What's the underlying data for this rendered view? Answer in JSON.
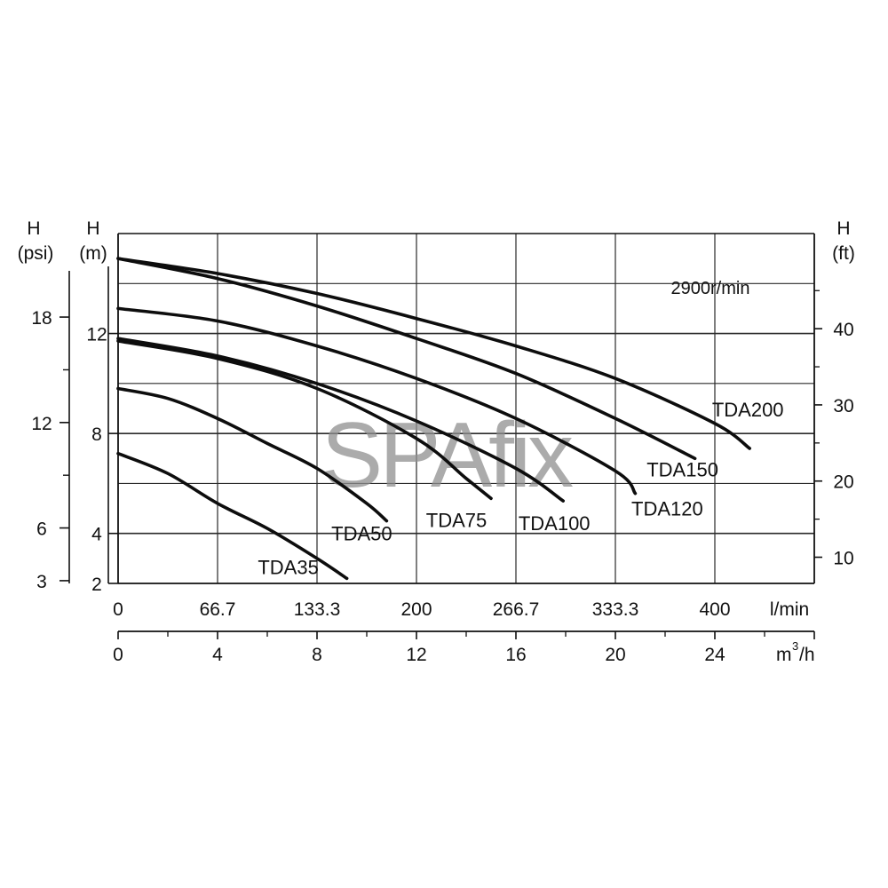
{
  "chart_data": {
    "type": "line",
    "annotation": "2900r/min",
    "watermark": "SPAfix",
    "x_unit_primary": "l/min",
    "x_unit_secondary_base": "m",
    "x_unit_secondary_exp": "3",
    "x_unit_secondary_tail": "/h",
    "x_ticks_lmin": [
      "0",
      "66.7",
      "133.3",
      "200",
      "266.7",
      "333.3",
      "400"
    ],
    "x_ticks_m3h": [
      "0",
      "4",
      "8",
      "12",
      "16",
      "20",
      "24"
    ],
    "xlim_m3h": [
      0,
      28
    ],
    "y_unit_m_top": "H",
    "y_unit_m_bottom": "(m)",
    "y_unit_psi_top": "H",
    "y_unit_psi_bottom": "(psi)",
    "y_unit_ft_top": "H",
    "y_unit_ft_bottom": "(ft)",
    "ylim_m": [
      2,
      16
    ],
    "y_ticks_m": [
      {
        "value": 2,
        "label": "2"
      },
      {
        "value": 4,
        "label": "4"
      },
      {
        "value": 8,
        "label": "8"
      },
      {
        "value": 12,
        "label": "12"
      }
    ],
    "y_ticks_psi": [
      {
        "value": 3,
        "label": "3"
      },
      {
        "value": 6,
        "label": "6"
      },
      {
        "value": 12,
        "label": "12"
      },
      {
        "value": 18,
        "label": "18"
      }
    ],
    "y_ticks_ft": [
      {
        "value": 10,
        "label": "10"
      },
      {
        "value": 20,
        "label": "20"
      },
      {
        "value": 30,
        "label": "30"
      },
      {
        "value": 40,
        "label": "40"
      }
    ],
    "grid": true,
    "series": [
      {
        "name": "TDA35",
        "x": [
          0,
          2,
          4,
          6,
          8,
          9.2
        ],
        "y": [
          7.2,
          6.4,
          5.2,
          4.2,
          3.0,
          2.2
        ]
      },
      {
        "name": "TDA50",
        "x": [
          0,
          2,
          4,
          6,
          8,
          10,
          10.8
        ],
        "y": [
          9.8,
          9.4,
          8.6,
          7.6,
          6.6,
          5.2,
          4.5
        ]
      },
      {
        "name": "TDA75",
        "x": [
          0,
          4,
          8,
          12,
          14,
          15
        ],
        "y": [
          11.7,
          11.0,
          9.8,
          7.8,
          6.2,
          5.4
        ]
      },
      {
        "name": "TDA100",
        "x": [
          0,
          4,
          8,
          12,
          16,
          17.9
        ],
        "y": [
          11.8,
          11.1,
          10.0,
          8.5,
          6.6,
          5.3
        ]
      },
      {
        "name": "TDA120",
        "x": [
          0,
          4,
          8,
          12,
          16,
          20,
          20.8
        ],
        "y": [
          13.0,
          12.5,
          11.5,
          10.2,
          8.6,
          6.5,
          5.6
        ]
      },
      {
        "name": "TDA150",
        "x": [
          0,
          4,
          8,
          12,
          16,
          20,
          23.2
        ],
        "y": [
          15.0,
          14.2,
          13.1,
          11.8,
          10.4,
          8.6,
          7.0
        ]
      },
      {
        "name": "TDA200",
        "x": [
          0,
          4,
          8,
          12,
          16,
          20,
          24,
          25.4
        ],
        "y": [
          15.0,
          14.4,
          13.6,
          12.6,
          11.5,
          10.2,
          8.4,
          7.4
        ]
      }
    ]
  }
}
